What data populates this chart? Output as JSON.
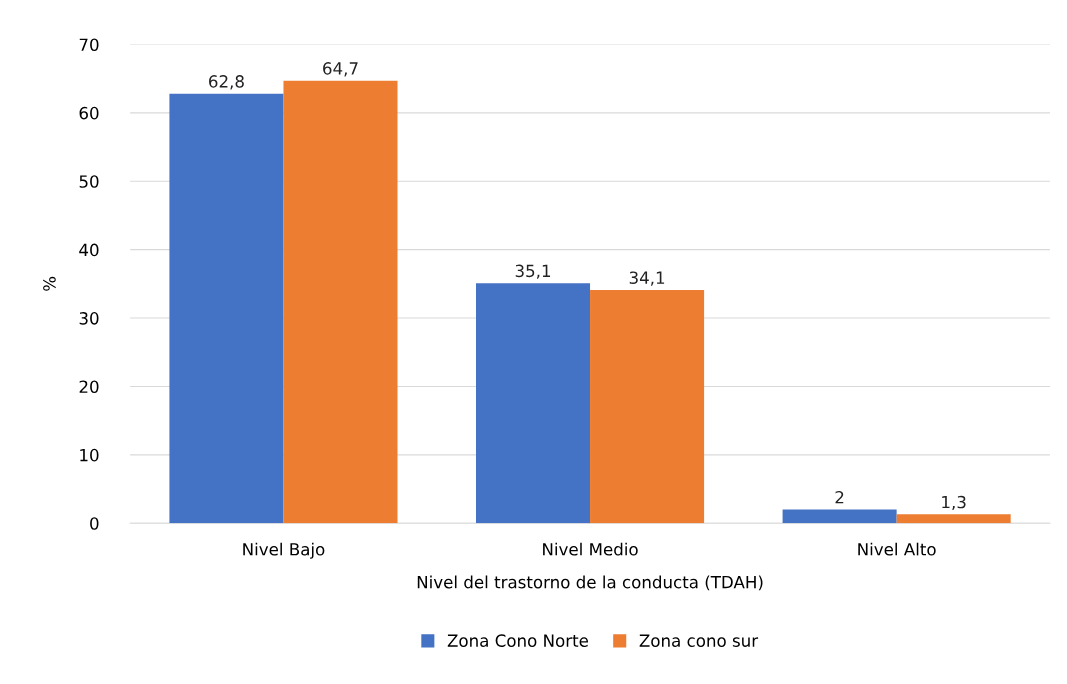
{
  "chart_data": {
    "type": "bar",
    "categories": [
      "Nivel Bajo",
      "Nivel Medio",
      "Nivel Alto"
    ],
    "xlabel": "Nivel del trastorno de la conducta (TDAH)",
    "ylabel": "%",
    "series": [
      {
        "name": "Zona Cono Norte",
        "color": "#4472c4",
        "values": [
          62.8,
          35.1,
          2
        ],
        "value_labels": [
          "62,8",
          "35,1",
          "2"
        ]
      },
      {
        "name": "Zona cono sur",
        "color": "#ed7d31",
        "values": [
          64.7,
          34.1,
          1.3
        ],
        "value_labels": [
          "64,7",
          "34,1",
          "1,3"
        ]
      }
    ],
    "ylim": [
      0,
      70
    ],
    "yticks": [
      0,
      10,
      20,
      30,
      40,
      50,
      60,
      70
    ],
    "grid": "y",
    "legend": "bottom"
  }
}
